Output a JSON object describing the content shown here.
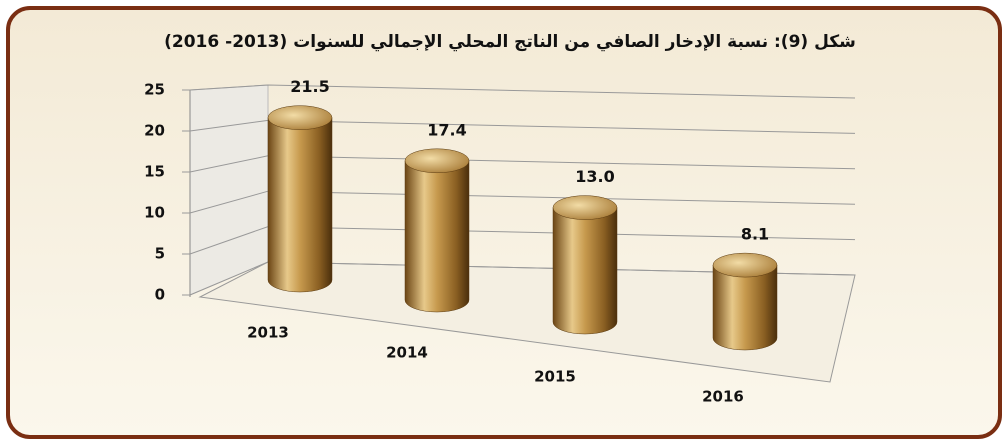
{
  "chart_data": {
    "type": "bar3d",
    "title": "شكل (9): نسبة الإدخار الصافي من الناتج المحلي الإجمالي للسنوات (2013- 2016)",
    "categories": [
      "2013",
      "2014",
      "2015",
      "2016"
    ],
    "values": [
      21.5,
      17.4,
      13.0,
      8.1
    ],
    "value_labels": [
      "21.5",
      "17.4",
      "13.0",
      "8.1"
    ],
    "color": "#c9a25a",
    "ylim": [
      0,
      25
    ],
    "yticks": [
      0,
      5,
      10,
      15,
      20,
      25
    ],
    "grid": true
  }
}
